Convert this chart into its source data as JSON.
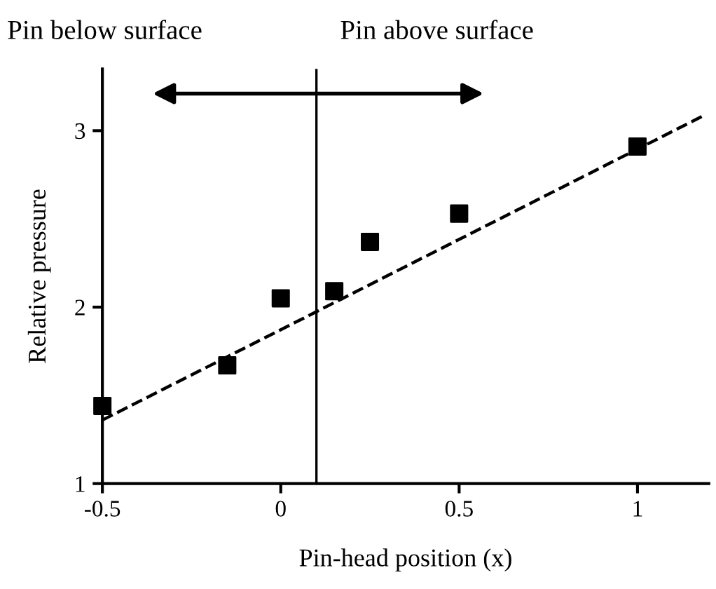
{
  "chart_data": {
    "type": "scatter",
    "xlabel": "Pin-head position (x)",
    "ylabel": "Relative pressure",
    "x": [
      -0.5,
      -0.15,
      0,
      0.15,
      0.25,
      0.5,
      1
    ],
    "series": [
      {
        "color": "#000000",
        "marker": "square",
        "values": [
          1.44,
          1.67,
          2.05,
          2.09,
          2.37,
          2.53,
          2.91
        ]
      },
      {
        "type": "line",
        "color": "#000000",
        "line_style": "dashed",
        "marker": "none",
        "x": [
          -0.5,
          1.19
        ],
        "values": [
          1.36,
          3.09
        ]
      }
    ],
    "xlim": [
      -0.5,
      1.2
    ],
    "ylim": [
      1,
      3.35
    ],
    "xticks": [
      -0.5,
      0,
      0.5,
      1
    ],
    "yticks": [
      1,
      2,
      3
    ],
    "grid": false,
    "legend": false,
    "ref_lines": [
      {
        "axis": "x",
        "value": 0.1,
        "color": "#000000",
        "line_style": "solid"
      }
    ],
    "annotations": [
      "Pin below surface",
      "Pin above surface"
    ]
  }
}
